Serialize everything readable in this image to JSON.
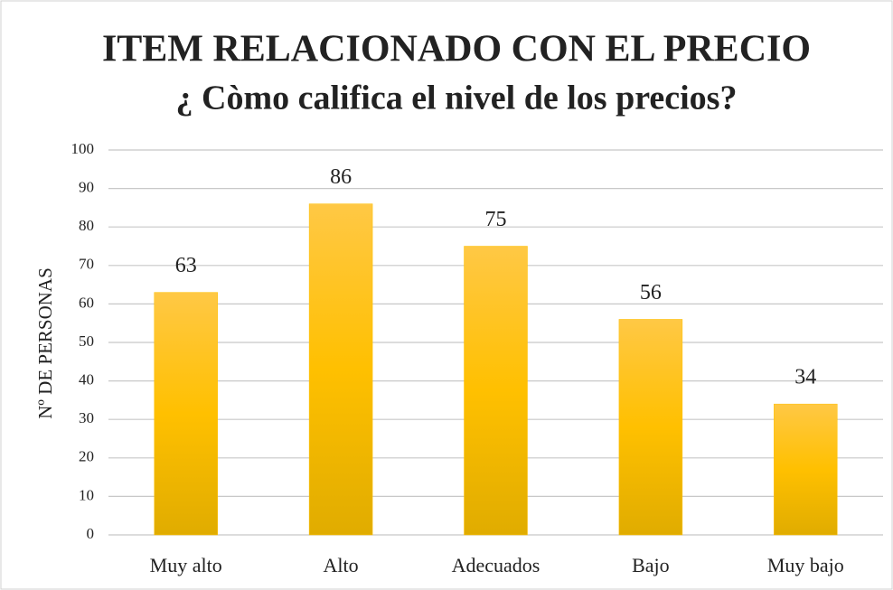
{
  "chart_data": {
    "type": "bar",
    "title": "ITEM RELACIONADO CON EL PRECIO",
    "subtitle": "¿ Còmo califica el nivel de los precios?",
    "y_label": "Nº DE PERSONAS",
    "categories": [
      "Muy alto",
      "Alto",
      "Adecuados",
      "Bajo",
      "Muy bajo"
    ],
    "values": [
      63,
      86,
      75,
      56,
      34
    ],
    "color": "#ffc000",
    "ylim": [
      0,
      100
    ],
    "yticks": [
      0,
      10,
      20,
      30,
      40,
      50,
      60,
      70,
      80,
      90,
      100
    ],
    "grid": true
  }
}
